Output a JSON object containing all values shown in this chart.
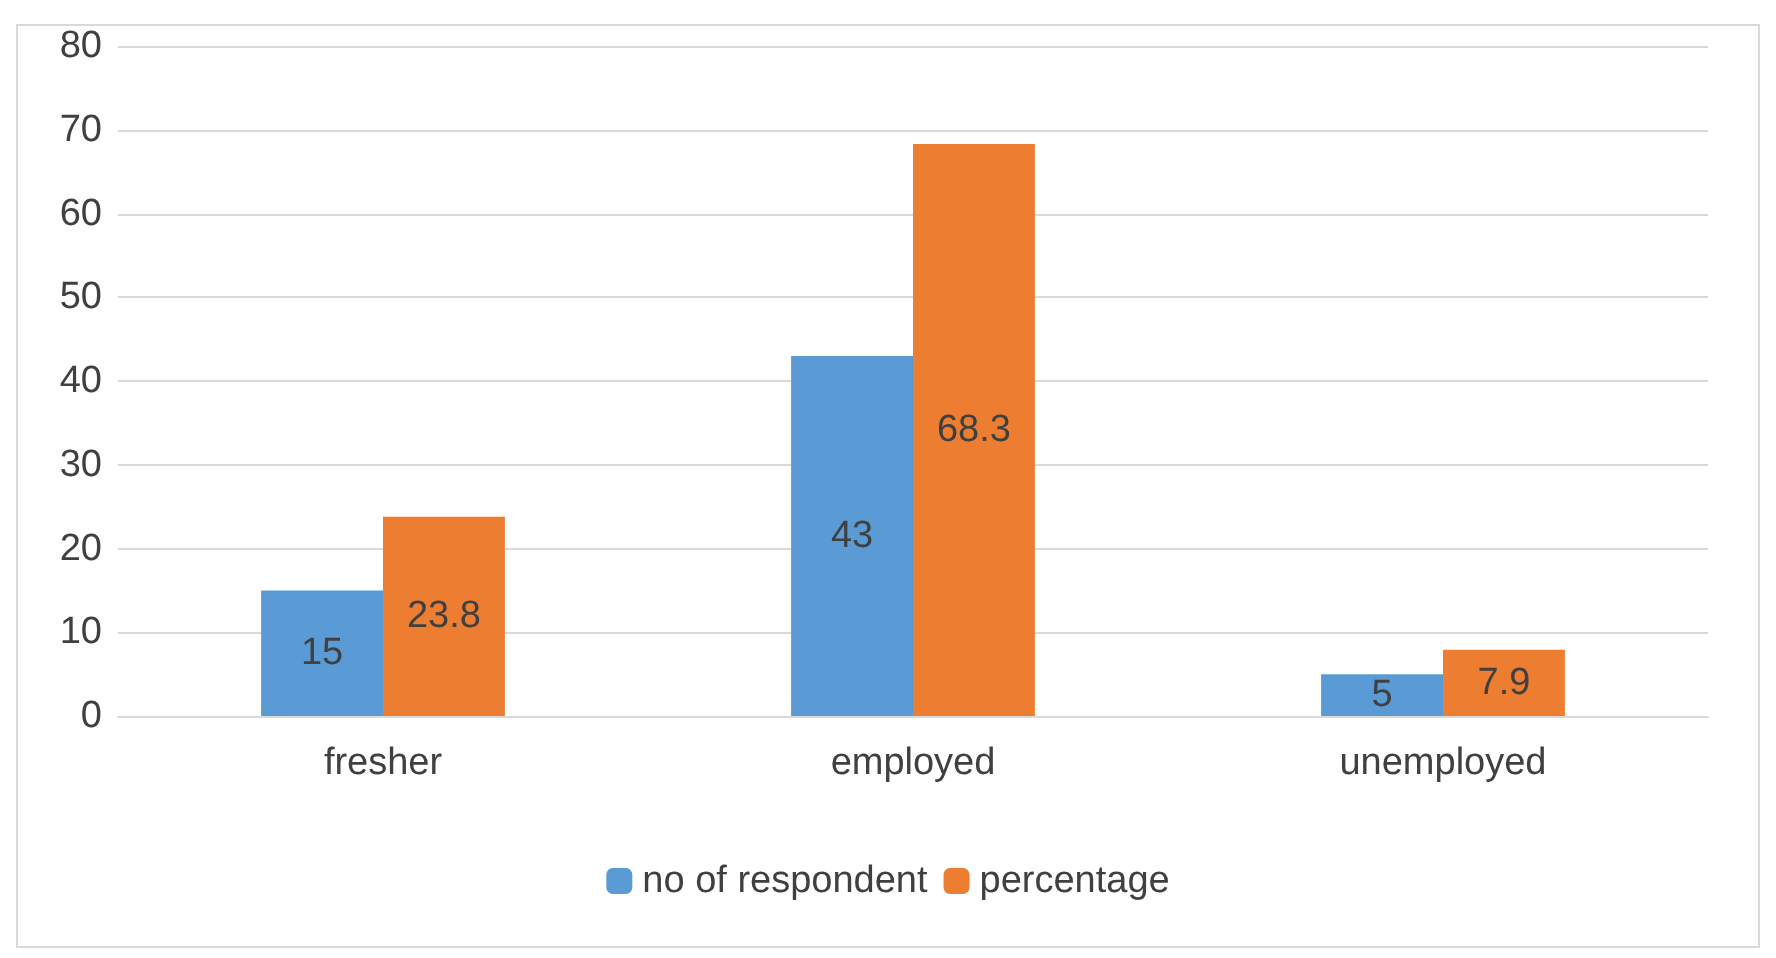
{
  "chart_data": {
    "type": "bar",
    "categories": [
      "fresher",
      "employed",
      "unemployed"
    ],
    "series": [
      {
        "name": "no of respondent",
        "color": "#5b9bd5",
        "values": [
          15,
          43,
          5
        ]
      },
      {
        "name": "percentage",
        "color": "#ed7d31",
        "values": [
          23.8,
          68.3,
          7.9
        ]
      }
    ],
    "ylim": [
      0,
      80
    ],
    "yticks": [
      0,
      10,
      20,
      30,
      40,
      50,
      60,
      70,
      80
    ],
    "grid": "y",
    "legend": "bottom",
    "data_labels": true
  }
}
